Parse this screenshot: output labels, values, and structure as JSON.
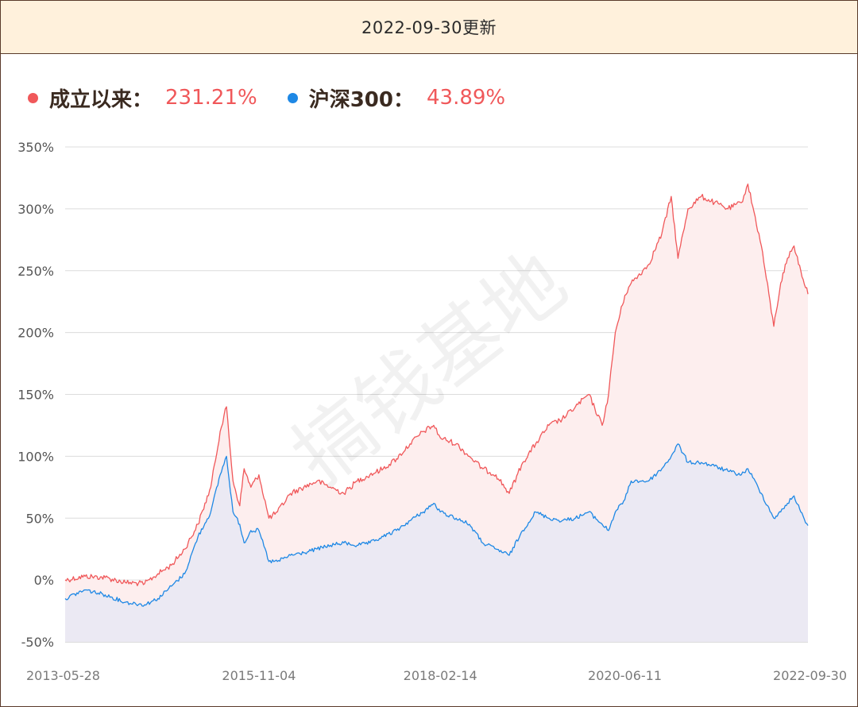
{
  "header": {
    "title": "2022-09-30更新"
  },
  "legend": [
    {
      "label": "成立以来：",
      "value": "231.21%",
      "color": "#f0585a"
    },
    {
      "label": "沪深300：",
      "value": "43.89%",
      "color": "#1e88e5"
    }
  ],
  "watermark": "搞钱基地",
  "colors": {
    "fund": "#f0585a",
    "fund_fill": "#fdeeee",
    "index": "#1e88e5",
    "index_fill": "#ebe9f3"
  },
  "chart_data": {
    "type": "line",
    "title": "",
    "xlabel": "",
    "ylabel": "",
    "ylim": [
      -50,
      350
    ],
    "yticks": [
      350,
      300,
      250,
      200,
      150,
      100,
      50,
      0,
      -50
    ],
    "ytick_labels": [
      "350%",
      "300%",
      "250%",
      "200%",
      "150%",
      "100%",
      "50%",
      "0%",
      "-50%"
    ],
    "xticks": [
      "2013-05-28",
      "2015-11-04",
      "2018-02-14",
      "2020-06-11",
      "2022-09-30"
    ],
    "xlim": [
      "2013-05-28",
      "2022-09-30"
    ],
    "grid": true,
    "series": [
      {
        "name": "成立以来",
        "x": [
          "2013-05-28",
          "2013-08-28",
          "2013-11-28",
          "2014-02-28",
          "2014-05-28",
          "2014-07-28",
          "2014-09-28",
          "2014-11-28",
          "2015-01-28",
          "2015-03-28",
          "2015-05-10",
          "2015-06-08",
          "2015-07-08",
          "2015-08-08",
          "2015-08-28",
          "2015-09-28",
          "2015-11-04",
          "2015-12-20",
          "2016-01-28",
          "2016-03-28",
          "2016-05-28",
          "2016-07-28",
          "2016-09-28",
          "2016-11-28",
          "2017-01-28",
          "2017-03-28",
          "2017-05-28",
          "2017-07-28",
          "2017-09-28",
          "2017-11-28",
          "2018-01-15",
          "2018-02-14",
          "2018-04-28",
          "2018-06-28",
          "2018-08-28",
          "2018-10-28",
          "2018-12-28",
          "2019-02-28",
          "2019-04-28",
          "2019-06-28",
          "2019-08-28",
          "2019-10-28",
          "2019-12-28",
          "2020-02-28",
          "2020-03-28",
          "2020-04-28",
          "2020-06-11",
          "2020-07-10",
          "2020-09-28",
          "2020-11-28",
          "2021-01-10",
          "2021-02-10",
          "2021-03-28",
          "2021-05-28",
          "2021-07-28",
          "2021-09-28",
          "2021-11-28",
          "2021-12-28",
          "2022-02-28",
          "2022-04-26",
          "2022-05-28",
          "2022-06-28",
          "2022-07-28",
          "2022-08-28",
          "2022-09-30"
        ],
        "values": [
          0,
          3,
          2,
          -2,
          -3,
          5,
          12,
          25,
          45,
          75,
          120,
          140,
          80,
          60,
          90,
          75,
          85,
          50,
          55,
          70,
          75,
          80,
          75,
          70,
          80,
          85,
          90,
          98,
          110,
          120,
          125,
          115,
          110,
          100,
          90,
          85,
          70,
          95,
          110,
          125,
          130,
          140,
          150,
          125,
          150,
          200,
          230,
          240,
          255,
          280,
          310,
          260,
          300,
          310,
          305,
          300,
          305,
          320,
          270,
          205,
          240,
          260,
          270,
          250,
          231
        ]
      },
      {
        "name": "沪深300",
        "x": [
          "2013-05-28",
          "2013-08-28",
          "2013-11-28",
          "2014-02-28",
          "2014-05-28",
          "2014-07-28",
          "2014-09-28",
          "2014-11-28",
          "2015-01-28",
          "2015-03-28",
          "2015-05-10",
          "2015-06-08",
          "2015-07-08",
          "2015-08-08",
          "2015-08-28",
          "2015-09-28",
          "2015-11-04",
          "2015-12-20",
          "2016-01-28",
          "2016-03-28",
          "2016-05-28",
          "2016-07-28",
          "2016-09-28",
          "2016-11-28",
          "2017-01-28",
          "2017-03-28",
          "2017-05-28",
          "2017-07-28",
          "2017-09-28",
          "2017-11-28",
          "2018-01-15",
          "2018-02-14",
          "2018-04-28",
          "2018-06-28",
          "2018-08-28",
          "2018-10-28",
          "2018-12-28",
          "2019-02-28",
          "2019-04-28",
          "2019-06-28",
          "2019-08-28",
          "2019-10-28",
          "2019-12-28",
          "2020-02-28",
          "2020-03-28",
          "2020-04-28",
          "2020-06-11",
          "2020-07-10",
          "2020-09-28",
          "2020-11-28",
          "2021-01-10",
          "2021-02-10",
          "2021-03-28",
          "2021-05-28",
          "2021-07-28",
          "2021-09-28",
          "2021-11-28",
          "2021-12-28",
          "2022-02-28",
          "2022-04-26",
          "2022-05-28",
          "2022-06-28",
          "2022-07-28",
          "2022-08-28",
          "2022-09-30"
        ],
        "values": [
          -15,
          -8,
          -12,
          -18,
          -20,
          -15,
          -5,
          5,
          35,
          55,
          85,
          100,
          55,
          45,
          30,
          40,
          40,
          15,
          15,
          20,
          22,
          25,
          28,
          30,
          28,
          30,
          35,
          40,
          48,
          55,
          62,
          55,
          50,
          45,
          30,
          25,
          20,
          40,
          55,
          50,
          48,
          50,
          55,
          45,
          40,
          55,
          65,
          80,
          80,
          90,
          100,
          110,
          95,
          95,
          92,
          88,
          85,
          90,
          70,
          50,
          55,
          62,
          68,
          55,
          44
        ]
      }
    ]
  }
}
